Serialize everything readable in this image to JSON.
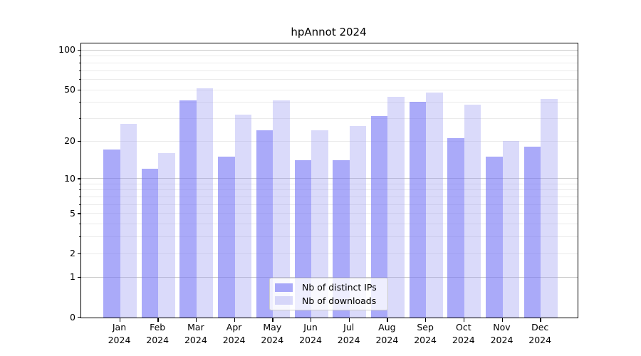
{
  "title": "hpAnnot 2024",
  "chart_data": {
    "type": "bar",
    "title": "hpAnnot 2024",
    "categories": [
      "Jan",
      "Feb",
      "Mar",
      "Apr",
      "May",
      "Jun",
      "Jul",
      "Aug",
      "Sep",
      "Oct",
      "Nov",
      "Dec"
    ],
    "category_year": "2024",
    "series": [
      {
        "name": "Nb of distinct IPs",
        "values": [
          17,
          12,
          41,
          15,
          24,
          14,
          14,
          31,
          40,
          21,
          15,
          18
        ]
      },
      {
        "name": "Nb of downloads",
        "values": [
          27,
          16,
          51,
          32,
          41,
          24,
          26,
          44,
          47,
          38,
          20,
          42
        ]
      }
    ],
    "xlabel": "",
    "ylabel": "",
    "yscale": "log1p",
    "ylim": [
      0,
      113
    ],
    "yticks": [
      100,
      50,
      20,
      10,
      5,
      2,
      1,
      0
    ],
    "grid": true,
    "legend_position": "lower center"
  },
  "colors": {
    "bar_ips": "rgba(118,118,245,0.62)",
    "bar_downloads": "rgba(158,158,242,0.38)",
    "grid_major": "#c9c9c9",
    "grid_minor": "#ebebeb",
    "spine": "#000000"
  }
}
